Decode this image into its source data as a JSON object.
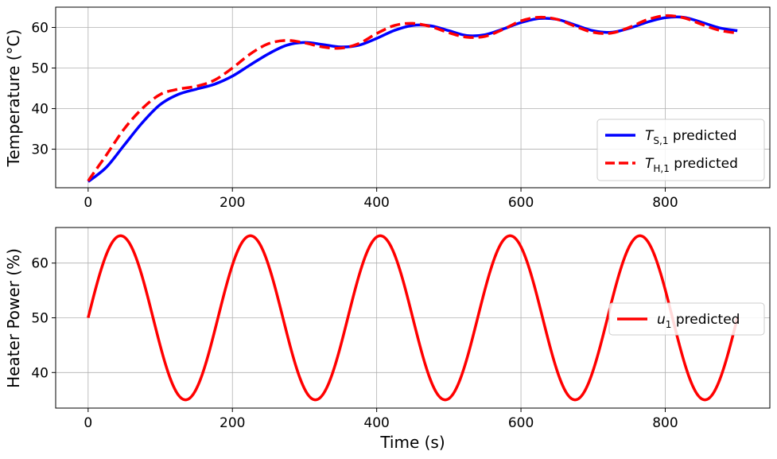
{
  "chart_data": [
    {
      "type": "line",
      "title": "",
      "xlabel": "",
      "ylabel": "Temperature (°C)",
      "xlim": [
        -45,
        945
      ],
      "ylim": [
        20.5,
        65
      ],
      "xticks": [
        0,
        200,
        400,
        600,
        800
      ],
      "yticks": [
        30,
        40,
        50,
        60
      ],
      "grid": true,
      "legend": "lower right",
      "x": [
        0,
        25,
        50,
        75,
        100,
        125,
        150,
        175,
        200,
        225,
        250,
        275,
        300,
        325,
        350,
        375,
        400,
        425,
        450,
        475,
        500,
        525,
        550,
        575,
        600,
        625,
        650,
        675,
        700,
        725,
        750,
        775,
        800,
        825,
        850,
        875,
        900
      ],
      "series": [
        {
          "name": "T_S,1 predicted",
          "label_base": "T",
          "label_sub": "S,1",
          "label_suffix": " predicted",
          "color": "#0000ff",
          "style": "solid",
          "values": [
            22.0,
            25.5,
            31.0,
            36.5,
            41.0,
            43.5,
            44.8,
            46.0,
            48.0,
            50.8,
            53.5,
            55.6,
            56.3,
            55.8,
            55.2,
            55.6,
            57.3,
            59.3,
            60.5,
            60.4,
            59.2,
            58.0,
            58.2,
            59.6,
            61.2,
            62.2,
            62.0,
            60.6,
            59.2,
            58.8,
            59.8,
            61.3,
            62.4,
            62.5,
            61.3,
            59.9,
            59.2
          ]
        },
        {
          "name": "T_H,1 predicted",
          "label_base": "T",
          "label_sub": "H,1",
          "label_suffix": " predicted",
          "color": "#ff0000",
          "style": "dashed",
          "values": [
            22.2,
            28.5,
            35.0,
            40.0,
            43.5,
            44.8,
            45.5,
            47.0,
            50.0,
            53.5,
            56.0,
            56.8,
            56.2,
            55.2,
            54.9,
            56.0,
            58.5,
            60.5,
            61.0,
            60.2,
            58.7,
            57.6,
            57.8,
            59.5,
            61.6,
            62.5,
            62.0,
            60.3,
            58.8,
            58.6,
            60.0,
            61.9,
            62.9,
            62.4,
            60.8,
            59.3,
            58.6
          ]
        }
      ]
    },
    {
      "type": "line",
      "title": "",
      "xlabel": "Time (s)",
      "ylabel": "Heater Power (%)",
      "xlim": [
        -45,
        945
      ],
      "ylim": [
        33.5,
        66.5
      ],
      "xticks": [
        0,
        200,
        400,
        600,
        800
      ],
      "yticks": [
        40,
        50,
        60
      ],
      "grid": true,
      "legend": "center right",
      "function": "u = 50 + 15*sin(2*pi*t/180)",
      "x_range": [
        0,
        900
      ],
      "series": [
        {
          "name": "u_1 predicted",
          "label_base": "u",
          "label_sub": "1",
          "label_suffix": " predicted",
          "color": "#ff0000",
          "style": "solid",
          "amplitude": 15,
          "offset": 50,
          "period": 180
        }
      ]
    }
  ]
}
